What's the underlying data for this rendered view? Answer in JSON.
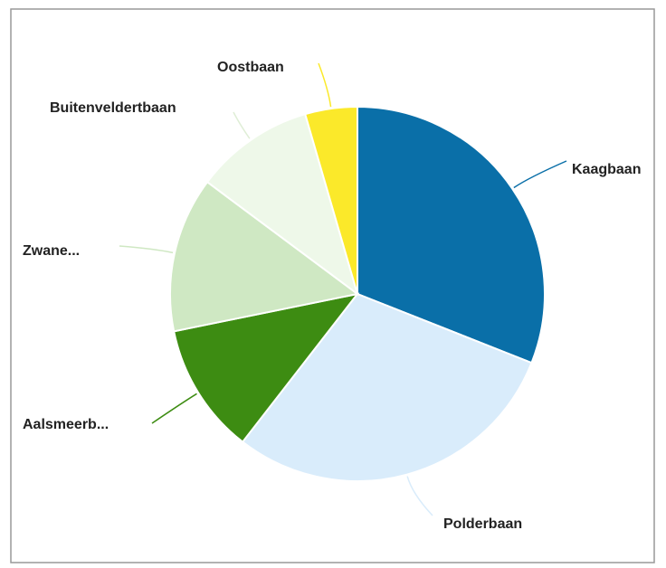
{
  "chart_data": {
    "type": "pie",
    "categories": [
      "Kaagbaan",
      "Polderbaan",
      "Aalsmeerb...",
      "Zwane...",
      "Buitenveldertbaan",
      "Oostbaan"
    ],
    "values": [
      31,
      29.5,
      11.3,
      13.4,
      10.3,
      4.5
    ],
    "colors": [
      "#0a6fa8",
      "#d9ecfb",
      "#3d8c12",
      "#cfe8c3",
      "#eef8e9",
      "#fbe92a"
    ]
  }
}
